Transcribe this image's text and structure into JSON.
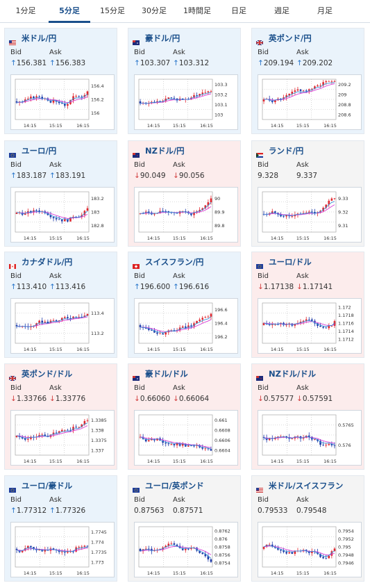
{
  "tabs": [
    "1分足",
    "5分足",
    "15分足",
    "30分足",
    "1時間足",
    "日足",
    "週足",
    "月足"
  ],
  "active_tab": 1,
  "x_ticks": [
    "14:15",
    "15:15",
    "16:15"
  ],
  "bid_label": "Bid",
  "ask_label": "Ask",
  "cards": [
    {
      "pair": "米ドル/円",
      "flag": "us",
      "dir": "up",
      "bid": "156.381",
      "ask": "156.383",
      "yticks": [
        "156.4",
        "156.2",
        "156"
      ]
    },
    {
      "pair": "豪ドル/円",
      "flag": "au",
      "dir": "up",
      "bid": "103.307",
      "ask": "103.312",
      "yticks": [
        "103.3",
        "103.2",
        "103.1",
        "103"
      ]
    },
    {
      "pair": "英ポンド/円",
      "flag": "gb",
      "dir": "up",
      "bid": "209.194",
      "ask": "209.202",
      "yticks": [
        "209.2",
        "209",
        "208.8",
        "208.6"
      ]
    },
    {
      "pair": "ユーロ/円",
      "flag": "eu",
      "dir": "up",
      "bid": "183.187",
      "ask": "183.191",
      "yticks": [
        "183.2",
        "183",
        "182.8"
      ]
    },
    {
      "pair": "NZドル/円",
      "flag": "nz",
      "dir": "down",
      "bid": "90.049",
      "ask": "90.056",
      "yticks": [
        "90",
        "89.9",
        "89.8"
      ]
    },
    {
      "pair": "ランド/円",
      "flag": "za",
      "dir": "none",
      "bid": "9.328",
      "ask": "9.337",
      "yticks": [
        "9.33",
        "9.32",
        "9.31"
      ]
    },
    {
      "pair": "カナダドル/円",
      "flag": "ca",
      "dir": "up",
      "bid": "113.410",
      "ask": "113.416",
      "yticks": [
        "113.4",
        "113.2"
      ]
    },
    {
      "pair": "スイスフラン/円",
      "flag": "ch",
      "dir": "up",
      "bid": "196.600",
      "ask": "196.616",
      "yticks": [
        "196.6",
        "196.4",
        "196.2"
      ]
    },
    {
      "pair": "ユーロ/ドル",
      "flag": "eu",
      "dir": "down",
      "bid": "1.17138",
      "ask": "1.17141",
      "yticks": [
        "1.172",
        "1.1718",
        "1.1716",
        "1.1714",
        "1.1712"
      ]
    },
    {
      "pair": "英ポンド/ドル",
      "flag": "gb",
      "dir": "down",
      "bid": "1.33766",
      "ask": "1.33776",
      "yticks": [
        "1.3385",
        "1.338",
        "1.3375",
        "1.337"
      ]
    },
    {
      "pair": "豪ドル/ドル",
      "flag": "au",
      "dir": "down",
      "bid": "0.66060",
      "ask": "0.66064",
      "yticks": [
        "0.661",
        "0.6608",
        "0.6606",
        "0.6604"
      ]
    },
    {
      "pair": "NZドル/ドル",
      "flag": "nz",
      "dir": "down",
      "bid": "0.57577",
      "ask": "0.57591",
      "yticks": [
        "0.5765",
        "0.576"
      ]
    },
    {
      "pair": "ユーロ/豪ドル",
      "flag": "eu",
      "dir": "up",
      "bid": "1.77312",
      "ask": "1.77326",
      "yticks": [
        "1.7745",
        "1.774",
        "1.7735",
        "1.773"
      ]
    },
    {
      "pair": "ユーロ/英ポンド",
      "flag": "eu",
      "dir": "none",
      "bid": "0.87563",
      "ask": "0.87571",
      "yticks": [
        "0.8762",
        "0.876",
        "0.8758",
        "0.8756",
        "0.8754"
      ]
    },
    {
      "pair": "米ドル/スイスフラン",
      "flag": "us",
      "dir": "none",
      "bid": "0.79533",
      "ask": "0.79548",
      "yticks": [
        "0.7954",
        "0.7952",
        "0.795",
        "0.7948",
        "0.7946"
      ]
    }
  ]
}
